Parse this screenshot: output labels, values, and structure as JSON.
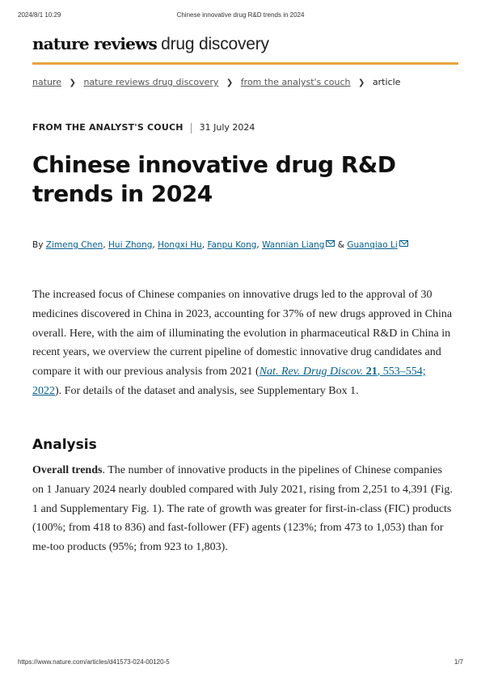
{
  "print_header": {
    "datetime": "2024/8/1 10:29",
    "page_title": "Chinese innovative drug R&D trends in 2024"
  },
  "brand": {
    "bold": "nature reviews",
    "light": "drug discovery",
    "accent_color": "#e8a33d"
  },
  "breadcrumb": {
    "items": [
      "nature",
      "nature reviews drug discovery",
      "from the analyst's couch"
    ],
    "current": "article"
  },
  "article": {
    "type": "FROM THE ANALYST'S COUCH",
    "date": "31 July 2024",
    "title": "Chinese innovative drug R&D trends in 2024",
    "by_label": "By",
    "authors": [
      "Zimeng Chen",
      "Hui Zhong",
      "Hongxi Hu",
      "Fanpu Kong",
      "Wannian Liang",
      "Guanqiao Li"
    ],
    "and_label": "&",
    "link_color": "#025e8d"
  },
  "intro": {
    "text_before": "The increased focus of Chinese companies on innovative drugs led to the approval of 30 medicines discovered in China in 2023, accounting for 37% of new drugs approved in China overall. Here, with the aim of illuminating the evolution in pharmaceutical R&D in China in recent years, we overview the current pipeline of domestic innovative drug candidates and compare it with our previous analysis from 2021 (",
    "cite_journal": "Nat. Rev. Drug Discov.",
    "cite_volume": "21",
    "cite_rest": ", 553–554; 2022",
    "text_after": "). For details of the dataset and analysis, see Supplementary Box 1."
  },
  "analysis": {
    "heading": "Analysis",
    "lead": "Overall trends",
    "text": ". The number of innovative products in the pipelines of Chinese companies on 1 January 2024 nearly doubled compared with July 2021, rising from 2,251 to 4,391 (Fig. 1 and Supplementary Fig. 1). The rate of growth was greater for first-in-class (FIC) products (100%; from 418 to 836) and fast-follower (FF) agents (123%; from 473 to 1,053) than for me-too products (95%; from 923 to 1,803)."
  },
  "print_footer": {
    "url": "https://www.nature.com/articles/d41573-024-00120-5",
    "page": "1/7"
  }
}
